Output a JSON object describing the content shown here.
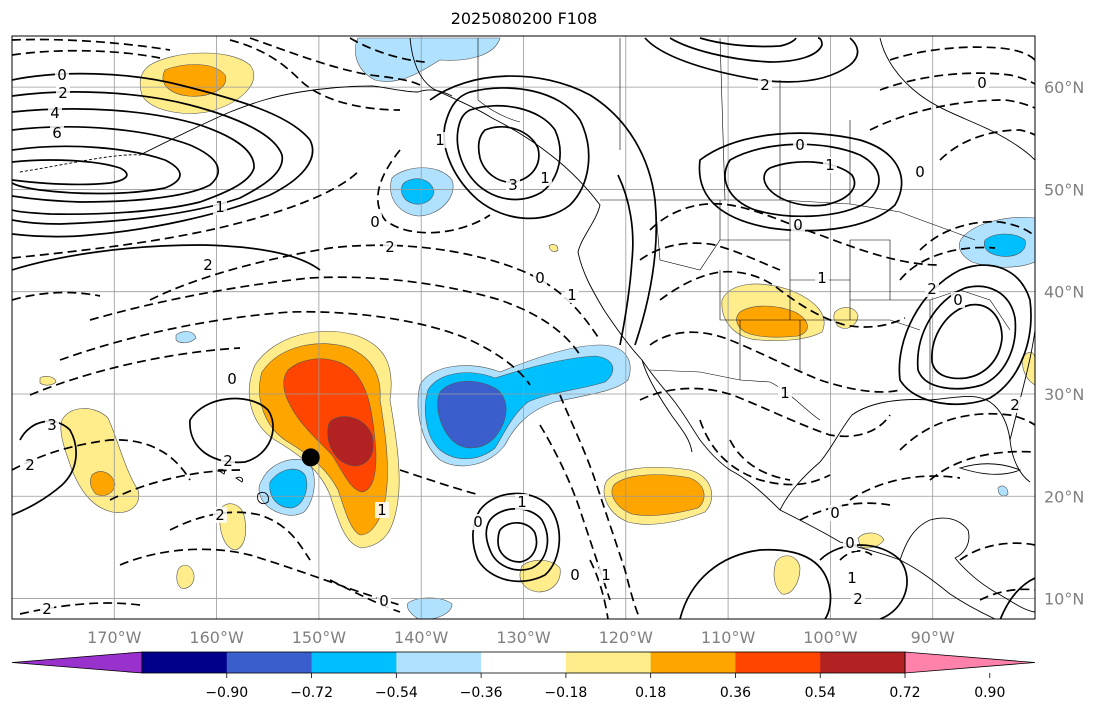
{
  "title": "2025080200 F108",
  "map": {
    "lon_labels": [
      "170°W",
      "160°W",
      "150°W",
      "140°W",
      "130°W",
      "120°W",
      "110°W",
      "100°W",
      "90°W"
    ],
    "lat_labels": [
      "60°N",
      "50°N",
      "40°N",
      "30°N",
      "20°N",
      "10°N"
    ],
    "marker": {
      "lon": -150.8,
      "lat": 23.8,
      "color": "#000000"
    }
  },
  "colorbar": {
    "ticks": [
      "−0.90",
      "−0.72",
      "−0.54",
      "−0.36",
      "−0.18",
      "0.18",
      "0.36",
      "0.54",
      "0.72",
      "0.90"
    ],
    "colors": [
      "#9932CC",
      "#00008B",
      "#3A5FCD",
      "#00BFFF",
      "#B0E2FF",
      "#FFFFFF",
      "#FFEC8B",
      "#FFA500",
      "#FF4500",
      "#B22222",
      "#FF82AB"
    ]
  },
  "contour_labels": [
    "0",
    "2",
    "4",
    "6",
    "1",
    "2",
    "0",
    "2",
    "1",
    "3",
    "1",
    "1",
    "0",
    "0",
    "2",
    "2",
    "1",
    "0",
    "2",
    "3",
    "2",
    "1",
    "0",
    "0",
    "1",
    "0",
    "0",
    "1",
    "2",
    "0",
    "0",
    "1",
    "2",
    "0",
    "0",
    "2",
    "0",
    "1",
    "1",
    "2"
  ]
}
